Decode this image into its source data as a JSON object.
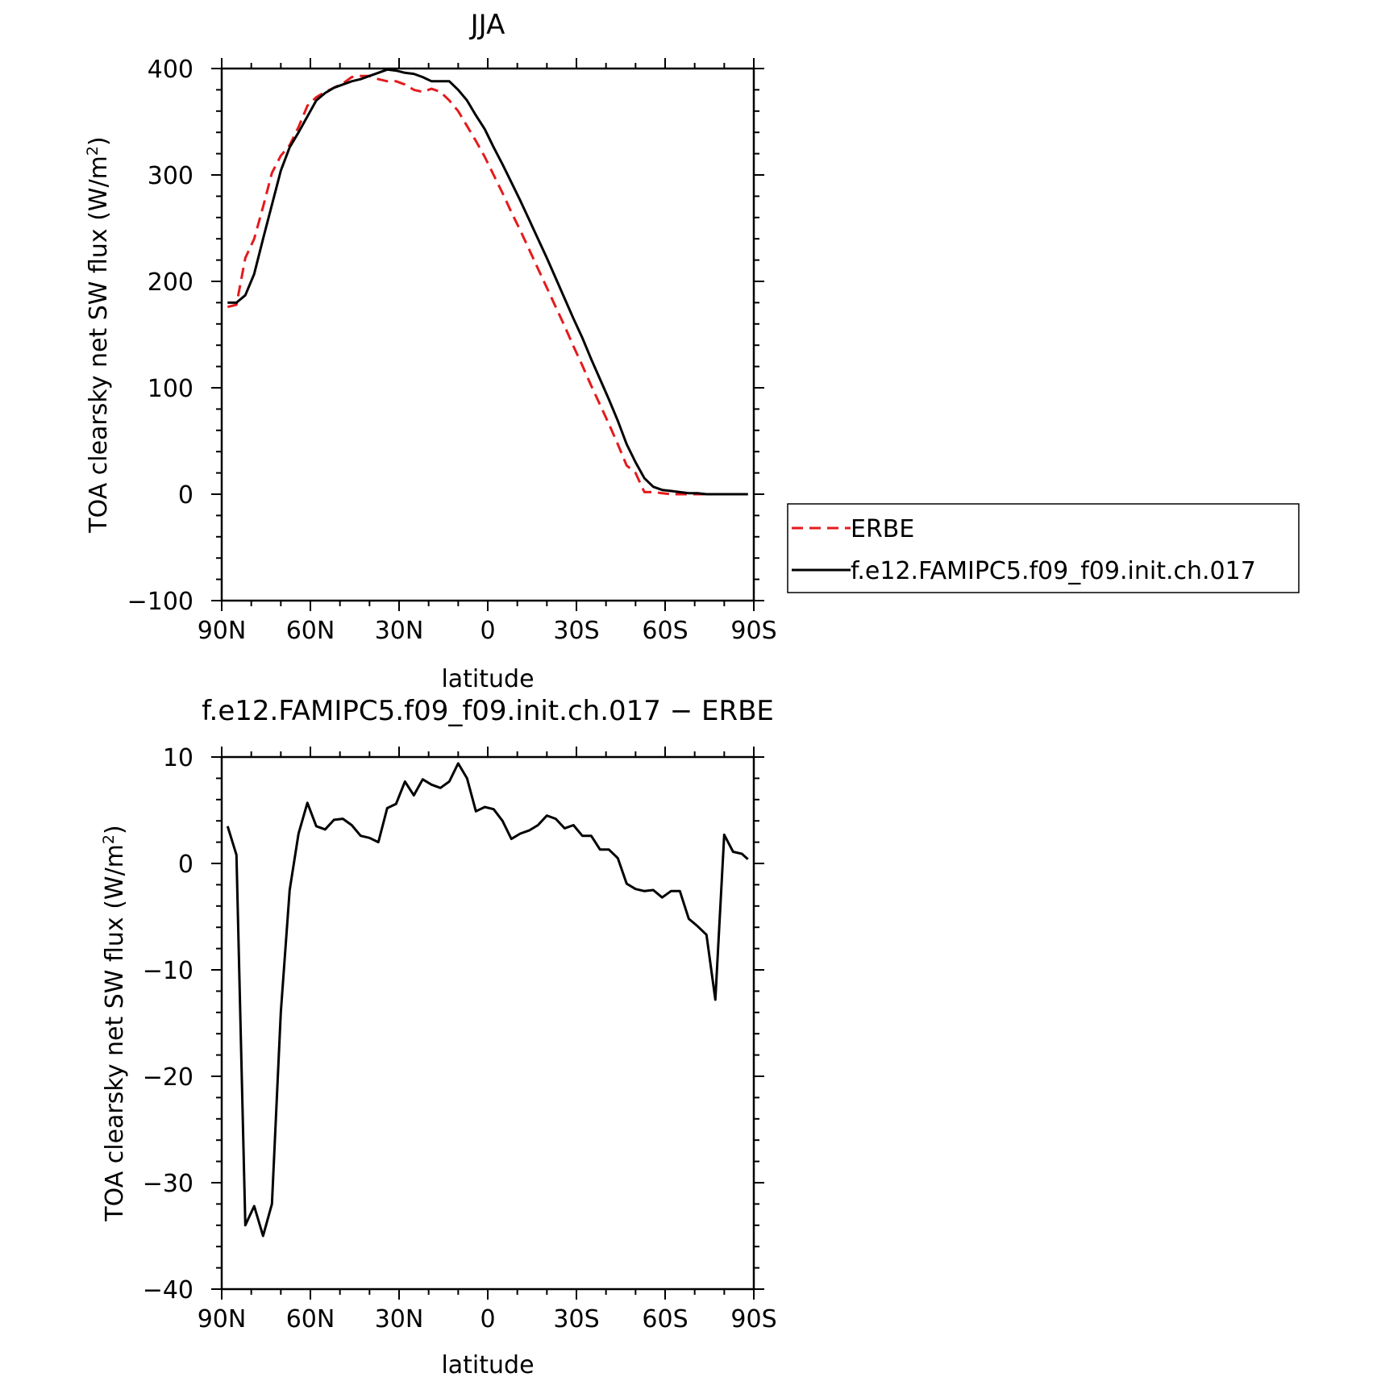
{
  "chart_data": [
    {
      "type": "line",
      "title": "JJA",
      "xlabel": "latitude",
      "ylabel": "TOA clearsky net SW flux (W/m",
      "ylabel_sup": "2",
      "ylabel_close": ")",
      "xlim": [
        90,
        -90
      ],
      "ylim": [
        -100,
        400
      ],
      "x_ticks": [
        {
          "value": 90,
          "label": "90N"
        },
        {
          "value": 60,
          "label": "60N"
        },
        {
          "value": 30,
          "label": "30N"
        },
        {
          "value": 0,
          "label": "0"
        },
        {
          "value": -30,
          "label": "30S"
        },
        {
          "value": -60,
          "label": "60S"
        },
        {
          "value": -90,
          "label": "90S"
        }
      ],
      "y_ticks": [
        {
          "value": 400,
          "label": "400"
        },
        {
          "value": 300,
          "label": "300"
        },
        {
          "value": 200,
          "label": "200"
        },
        {
          "value": 100,
          "label": "100"
        },
        {
          "value": 0,
          "label": "0"
        },
        {
          "value": -100,
          "label": "−100"
        }
      ],
      "x": [
        88,
        85,
        82,
        79,
        76,
        73,
        70,
        67,
        64,
        61,
        58,
        55,
        52,
        49,
        46,
        43,
        40,
        37,
        34,
        31,
        28,
        25,
        22,
        19,
        16,
        13,
        10,
        7,
        4,
        1,
        -2,
        -5,
        -8,
        -11,
        -14,
        -17,
        -20,
        -23,
        -26,
        -29,
        -32,
        -35,
        -38,
        -41,
        -44,
        -47,
        -50,
        -53,
        -56,
        -59,
        -62,
        -65,
        -68,
        -71,
        -74,
        -77,
        -80,
        -83,
        -86,
        -88
      ],
      "series": [
        {
          "name": "ERBE",
          "color": "#e41a1c",
          "dash": true,
          "values": [
            176,
            178,
            222,
            240,
            270,
            302,
            318,
            328,
            345,
            365,
            373,
            378,
            382,
            386,
            392,
            393,
            393,
            390,
            388,
            388,
            385,
            380,
            378,
            381,
            378,
            370,
            360,
            346,
            332,
            317,
            300,
            283,
            265,
            248,
            230,
            212,
            194,
            176,
            158,
            139,
            121,
            102,
            84,
            66,
            47,
            27,
            20,
            2,
            2,
            1,
            0,
            0,
            0,
            0,
            0,
            0,
            0,
            0,
            0,
            0
          ]
        },
        {
          "name": "f.e12.FAMIPC5.f09_f09.init.ch.017",
          "color": "#000000",
          "dash": false,
          "values": [
            180,
            180,
            187,
            207,
            240,
            272,
            304,
            326,
            340,
            355,
            370,
            377,
            382,
            385,
            388,
            390,
            393,
            396,
            399,
            398,
            396,
            395,
            392,
            388,
            388,
            388,
            380,
            370,
            356,
            343,
            326,
            310,
            293,
            276,
            258,
            240,
            222,
            203,
            184,
            165,
            147,
            127,
            108,
            89,
            69,
            47,
            30,
            15,
            7,
            4,
            3,
            2,
            1,
            1,
            0,
            0,
            0,
            0,
            0,
            0
          ]
        }
      ]
    },
    {
      "type": "line",
      "title": "f.e12.FAMIPC5.f09_f09.init.ch.017 − ERBE",
      "xlabel": "latitude",
      "ylabel": "TOA clearsky net SW flux (W/m",
      "ylabel_sup": "2",
      "ylabel_close": ")",
      "xlim": [
        90,
        -90
      ],
      "ylim": [
        -40,
        10
      ],
      "x_ticks": [
        {
          "value": 90,
          "label": "90N"
        },
        {
          "value": 60,
          "label": "60N"
        },
        {
          "value": 30,
          "label": "30N"
        },
        {
          "value": 0,
          "label": "0"
        },
        {
          "value": -30,
          "label": "30S"
        },
        {
          "value": -60,
          "label": "60S"
        },
        {
          "value": -90,
          "label": "90S"
        }
      ],
      "y_ticks": [
        {
          "value": 10,
          "label": "10"
        },
        {
          "value": 0,
          "label": "0"
        },
        {
          "value": -10,
          "label": "−10"
        },
        {
          "value": -20,
          "label": "−20"
        },
        {
          "value": -30,
          "label": "−30"
        },
        {
          "value": -40,
          "label": "−40"
        }
      ],
      "x": [
        88,
        85,
        82,
        79,
        76,
        73,
        70,
        67,
        64,
        61,
        58,
        55,
        52,
        49,
        46,
        43,
        40,
        37,
        34,
        31,
        28,
        25,
        22,
        19,
        16,
        13,
        10,
        7,
        4,
        1,
        -2,
        -5,
        -8,
        -11,
        -14,
        -17,
        -20,
        -23,
        -26,
        -29,
        -32,
        -35,
        -38,
        -41,
        -44,
        -47,
        -50,
        -53,
        -56,
        -59,
        -62,
        -65,
        -68,
        -71,
        -74,
        -77,
        -80,
        -83,
        -86,
        -88
      ],
      "series": [
        {
          "name": "",
          "color": "#000000",
          "dash": false,
          "values": [
            3.5,
            0.8,
            -34.0,
            -32.2,
            -35.0,
            -32.0,
            -14.0,
            -2.5,
            2.8,
            5.7,
            3.5,
            3.2,
            4.1,
            4.2,
            3.6,
            2.6,
            2.4,
            2.0,
            5.2,
            5.6,
            7.7,
            6.4,
            7.9,
            7.4,
            7.1,
            7.7,
            9.4,
            8.0,
            4.9,
            5.3,
            5.1,
            4.0,
            2.3,
            2.8,
            3.1,
            3.6,
            4.5,
            4.2,
            3.3,
            3.6,
            2.6,
            2.6,
            1.3,
            1.3,
            0.5,
            -1.9,
            -2.4,
            -2.6,
            -2.5,
            -3.2,
            -2.6,
            -2.6,
            -5.2,
            -5.9,
            -6.7,
            -12.8,
            2.7,
            1.1,
            0.9,
            0.4
          ]
        }
      ]
    }
  ]
}
